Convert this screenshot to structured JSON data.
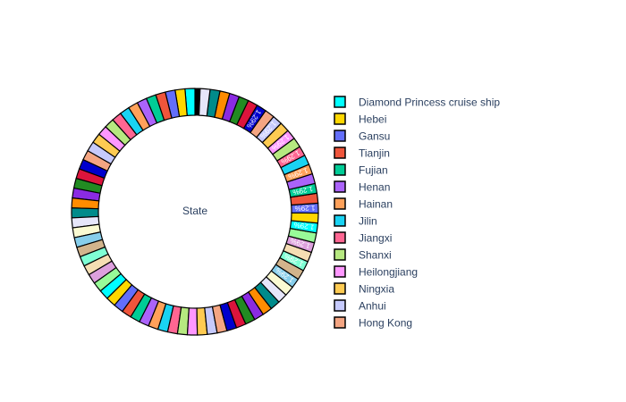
{
  "chart_data": {
    "type": "pie",
    "hole_label": "State",
    "slice_text_format": "percent",
    "legend": {
      "placement": "right",
      "items": [
        {
          "label": "Diamond Princess cruise ship",
          "color": "#00FFFF"
        },
        {
          "label": "Hebei",
          "color": "#FFD700"
        },
        {
          "label": "Gansu",
          "color": "#636EFA"
        },
        {
          "label": "Tianjin",
          "color": "#EF553B"
        },
        {
          "label": "Fujian",
          "color": "#00CC96"
        },
        {
          "label": "Henan",
          "color": "#AB63FA"
        },
        {
          "label": "Hainan",
          "color": "#FFA15A"
        },
        {
          "label": "Jilin",
          "color": "#19D3F3"
        },
        {
          "label": "Jiangxi",
          "color": "#FF6692"
        },
        {
          "label": "Shanxi",
          "color": "#B6E880"
        },
        {
          "label": "Heilongjiang",
          "color": "#FF97FF"
        },
        {
          "label": "Ningxia",
          "color": "#FECB52"
        },
        {
          "label": "Anhui",
          "color": "#C6CAFD"
        },
        {
          "label": "Hong Kong",
          "color": "#F4A582"
        }
      ]
    },
    "visible_slice_labels": [
      "1.29%",
      "1.29%",
      "1.29%",
      "1.29%",
      "1.29%",
      "1.29%",
      "1.29%",
      "1.29%",
      "1.29%",
      "1.29%",
      "1.29%"
    ],
    "visible_labeled_slice_value_percent": 1.29,
    "labeled_slice_count": 77,
    "tiny_slice_count": 240,
    "palette": [
      "#00FFFF",
      "#FFD700",
      "#636EFA",
      "#EF553B",
      "#00CC96",
      "#AB63FA",
      "#FFA15A",
      "#19D3F3",
      "#FF6692",
      "#B6E880",
      "#FF97FF",
      "#FECB52",
      "#C6CAFD",
      "#F4A582",
      "#0000CD",
      "#DC143C",
      "#228B22",
      "#8A2BE2",
      "#FF8C00",
      "#008B8B",
      "#E6E6FA",
      "#FAFAD2",
      "#87CEEB",
      "#D2B48C",
      "#7FFFD4",
      "#F5DEB3",
      "#DDA0DD",
      "#98FB98"
    ],
    "slice_outline_color": "#000000"
  }
}
